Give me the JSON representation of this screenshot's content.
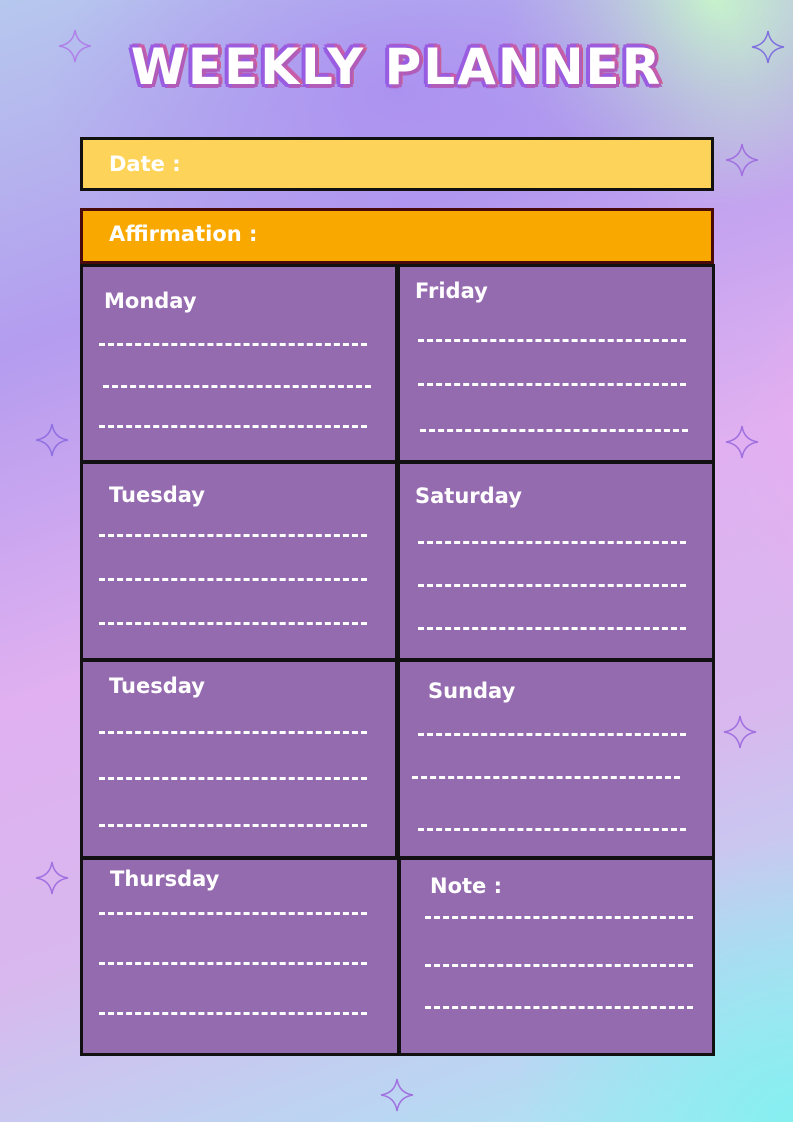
{
  "title": "WEEKLY PLANNER",
  "date_label": "Date :",
  "affirmation_label": "Affirmation :",
  "days": {
    "monday": "Monday",
    "friday": "Friday",
    "tuesday": "Tuesday",
    "saturday": "Saturday",
    "tuesday2": "Tuesday",
    "sunday": "Sunday",
    "thursday": "Thursday",
    "note": "Note :"
  },
  "colors": {
    "date_bar": "#fdd35a",
    "affirmation_bar": "#f9a800",
    "cell": "#956bb0"
  }
}
